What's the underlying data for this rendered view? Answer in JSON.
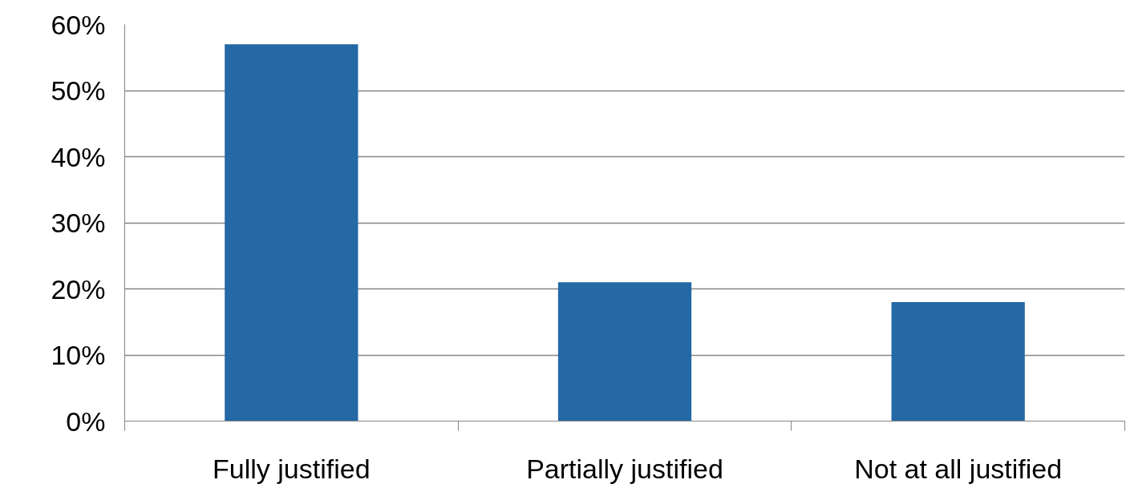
{
  "chart_data": {
    "type": "bar",
    "categories": [
      "Fully justified",
      "Partially justified",
      "Not at all justified"
    ],
    "values": [
      57,
      21,
      18
    ],
    "color": "#2468a6",
    "ylim": [
      0,
      60
    ],
    "yticks": [
      {
        "value": 0,
        "label": "0%"
      },
      {
        "value": 10,
        "label": "10%"
      },
      {
        "value": 20,
        "label": "20%"
      },
      {
        "value": 30,
        "label": "30%"
      },
      {
        "value": 40,
        "label": "40%"
      },
      {
        "value": 50,
        "label": "50%"
      },
      {
        "value": 60,
        "label": "60%"
      }
    ],
    "grid": "y"
  }
}
